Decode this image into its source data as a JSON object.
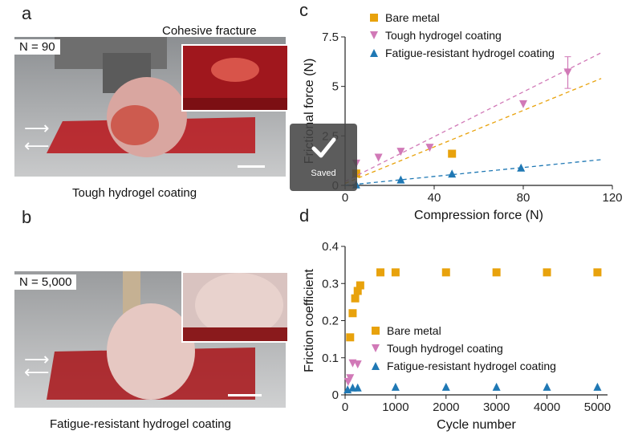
{
  "panels": {
    "a": {
      "letter": "a",
      "n_label": "N = 90",
      "inset_title": "Cohesive fracture",
      "caption": "Tough hydrogel coating"
    },
    "b": {
      "letter": "b",
      "n_label": "N = 5,000",
      "caption": "Fatigue-resistant hydrogel coating"
    },
    "c": {
      "letter": "c"
    },
    "d": {
      "letter": "d"
    }
  },
  "colors": {
    "bare": "#e8a20c",
    "tough": "#d179b7",
    "fatigue": "#1f78b4",
    "overlay": "#464646"
  },
  "saved_toast": {
    "label": "Saved",
    "icon": "checkmark-icon"
  },
  "chart_data": [
    {
      "type": "scatter",
      "panel": "c",
      "xlabel": "Compression force (N)",
      "ylabel": "Frictional force (N)",
      "xlim": [
        0,
        120
      ],
      "ylim": [
        0,
        7.5
      ],
      "xticks": [
        "0",
        "40",
        "80",
        "120"
      ],
      "yticks": [
        "0",
        "2.5",
        "5",
        "7.5"
      ],
      "legend_position": "top",
      "series": [
        {
          "name": "Bare metal",
          "marker": "square",
          "color": "#e8a20c",
          "points": [
            [
              5,
              0.6
            ],
            [
              48,
              1.6
            ]
          ],
          "fit": [
            [
              0,
              0.1
            ],
            [
              115,
              5.4
            ]
          ]
        },
        {
          "name": "Tough hydrogel coating",
          "marker": "triangle-down",
          "color": "#d179b7",
          "points": [
            [
              5,
              1.1
            ],
            [
              15,
              1.4
            ],
            [
              25,
              1.7
            ],
            [
              38,
              1.9
            ],
            [
              80,
              4.1
            ],
            [
              100,
              5.7
            ]
          ],
          "error_y": [
            0,
            0,
            0,
            0,
            0,
            0.8
          ],
          "fit": [
            [
              0,
              0.2
            ],
            [
              115,
              6.7
            ]
          ]
        },
        {
          "name": "Fatigue-resistant hydrogel coating",
          "marker": "triangle-up",
          "color": "#1f78b4",
          "points": [
            [
              5,
              0.05
            ],
            [
              25,
              0.3
            ],
            [
              48,
              0.6
            ],
            [
              79,
              0.9
            ]
          ],
          "fit": [
            [
              0,
              0.0
            ],
            [
              115,
              1.3
            ]
          ]
        }
      ]
    },
    {
      "type": "scatter",
      "panel": "d",
      "xlabel": "Cycle number",
      "ylabel": "Friction coefficient",
      "xlim": [
        0,
        5200
      ],
      "ylim": [
        0,
        0.4
      ],
      "xticks": [
        "0",
        "1000",
        "2000",
        "3000",
        "4000",
        "5000"
      ],
      "yticks": [
        "0",
        "0.1",
        "0.2",
        "0.3",
        "0.4"
      ],
      "legend_position": "center-right",
      "series": [
        {
          "name": "Bare metal",
          "marker": "square",
          "color": "#e8a20c",
          "points": [
            [
              100,
              0.155
            ],
            [
              150,
              0.22
            ],
            [
              200,
              0.26
            ],
            [
              250,
              0.28
            ],
            [
              300,
              0.295
            ],
            [
              700,
              0.33
            ],
            [
              1000,
              0.33
            ],
            [
              2000,
              0.33
            ],
            [
              3000,
              0.33
            ],
            [
              4000,
              0.33
            ],
            [
              5000,
              0.33
            ]
          ]
        },
        {
          "name": "Tough hydrogel coating",
          "marker": "triangle-down",
          "color": "#d179b7",
          "points": [
            [
              60,
              0.035
            ],
            [
              100,
              0.045
            ],
            [
              150,
              0.085
            ],
            [
              250,
              0.082
            ]
          ]
        },
        {
          "name": "Fatigue-resistant hydrogel coating",
          "marker": "triangle-up",
          "color": "#1f78b4",
          "points": [
            [
              50,
              0.015
            ],
            [
              150,
              0.02
            ],
            [
              250,
              0.02
            ],
            [
              1000,
              0.022
            ],
            [
              2000,
              0.022
            ],
            [
              3000,
              0.022
            ],
            [
              4000,
              0.022
            ],
            [
              5000,
              0.022
            ]
          ]
        }
      ]
    }
  ]
}
